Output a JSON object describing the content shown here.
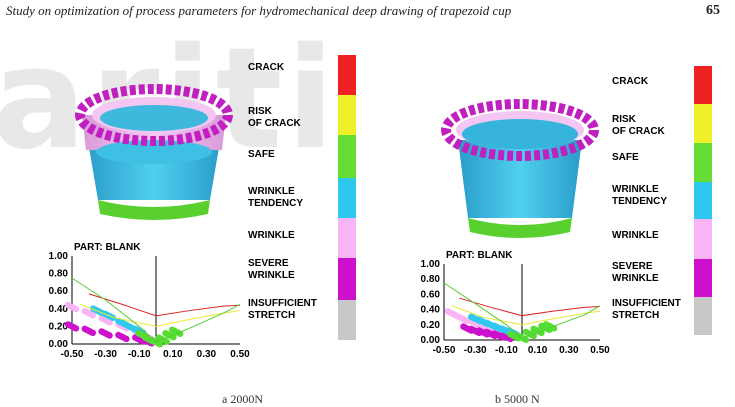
{
  "header": {
    "running_title": "Study on optimization of process parameters for hydromechanical deep drawing of trapezoid cup",
    "page_number": "65"
  },
  "legend": {
    "items": [
      {
        "label": "CRACK",
        "color": "#ee2222"
      },
      {
        "label": "RISK\nOF CRACK",
        "color": "#f0f02a"
      },
      {
        "label": "SAFE",
        "color": "#66dd33"
      },
      {
        "label": "WRINKLE\nTENDENCY",
        "color": "#2ec8ee"
      },
      {
        "label": "WRINKLE",
        "color": "#f8b4f4"
      },
      {
        "label": "SEVERE\nWRINKLE",
        "color": "#cc10cc"
      },
      {
        "label": "INSUFFICIENT\nSTRETCH",
        "color": "#c8c8c8"
      }
    ]
  },
  "panels": [
    {
      "part_label": "PART: BLANK",
      "caption": "a 2000N",
      "chart_data": {
        "type": "scatter",
        "x_ticks": [
          "-0.50",
          "-0.30",
          "-0.10",
          "0.10",
          "0.30",
          "0.50"
        ],
        "y_ticks": [
          "1.00",
          "0.80",
          "0.60",
          "0.40",
          "0.20",
          "0.00"
        ],
        "xlim": [
          -0.5,
          0.5
        ],
        "ylim": [
          0,
          1
        ],
        "curves": [
          {
            "color": "#dd2222",
            "x": [
              -0.4,
              -0.2,
              0.0,
              0.2,
              0.4,
              0.5
            ],
            "y": [
              0.57,
              0.45,
              0.32,
              0.38,
              0.43,
              0.44
            ]
          },
          {
            "color": "#e8e830",
            "x": [
              -0.45,
              -0.25,
              0.0,
              0.2,
              0.4,
              0.5
            ],
            "y": [
              0.45,
              0.3,
              0.2,
              0.28,
              0.35,
              0.38
            ]
          },
          {
            "color": "#55cc33",
            "x": [
              -0.5,
              -0.3,
              -0.1,
              0.0,
              0.2,
              0.4,
              0.5
            ],
            "y": [
              0.75,
              0.5,
              0.2,
              0.02,
              0.18,
              0.35,
              0.45
            ]
          }
        ],
        "scatter_bands": [
          {
            "color": "#f8b4f4",
            "x": [
              -0.5,
              -0.4,
              -0.3,
              -0.2,
              -0.1,
              -0.05
            ],
            "y": [
              0.42,
              0.35,
              0.27,
              0.2,
              0.12,
              0.08
            ]
          },
          {
            "color": "#cc10cc",
            "x": [
              -0.5,
              -0.4,
              -0.3,
              -0.2,
              -0.1,
              -0.05
            ],
            "y": [
              0.2,
              0.15,
              0.12,
              0.08,
              0.05,
              0.03
            ]
          },
          {
            "color": "#2ec8ee",
            "x": [
              -0.35,
              -0.28,
              -0.2,
              -0.15,
              -0.1
            ],
            "y": [
              0.38,
              0.32,
              0.24,
              0.19,
              0.15
            ]
          },
          {
            "color": "#55dd33",
            "x": [
              -0.08,
              -0.04,
              0.0,
              0.04,
              0.08,
              0.12
            ],
            "y": [
              0.1,
              0.05,
              0.02,
              0.05,
              0.1,
              0.14
            ]
          }
        ]
      }
    },
    {
      "part_label": "PART: BLANK",
      "caption": "b 5000 N",
      "chart_data": {
        "type": "scatter",
        "x_ticks": [
          "-0.50",
          "-0.30",
          "-0.10",
          "0.10",
          "0.30",
          "0.50"
        ],
        "y_ticks": [
          "1.00",
          "0.80",
          "0.60",
          "0.40",
          "0.20",
          "0.00"
        ],
        "xlim": [
          -0.5,
          0.5
        ],
        "ylim": [
          0,
          1
        ],
        "curves": [
          {
            "color": "#dd2222",
            "x": [
              -0.4,
              -0.2,
              0.0,
              0.2,
              0.4,
              0.5
            ],
            "y": [
              0.55,
              0.43,
              0.32,
              0.38,
              0.43,
              0.44
            ]
          },
          {
            "color": "#e8e830",
            "x": [
              -0.45,
              -0.25,
              0.0,
              0.2,
              0.4,
              0.5
            ],
            "y": [
              0.45,
              0.3,
              0.2,
              0.28,
              0.35,
              0.38
            ]
          },
          {
            "color": "#55cc33",
            "x": [
              -0.5,
              -0.3,
              -0.1,
              0.0,
              0.2,
              0.4,
              0.5
            ],
            "y": [
              0.75,
              0.48,
              0.2,
              0.02,
              0.18,
              0.33,
              0.45
            ]
          }
        ],
        "scatter_bands": [
          {
            "color": "#f8b4f4",
            "x": [
              -0.45,
              -0.38,
              -0.3,
              -0.22,
              -0.15,
              -0.08
            ],
            "y": [
              0.35,
              0.28,
              0.22,
              0.16,
              0.12,
              0.08
            ]
          },
          {
            "color": "#cc10cc",
            "x": [
              -0.35,
              -0.3,
              -0.25,
              -0.2,
              -0.15,
              -0.1
            ],
            "y": [
              0.15,
              0.12,
              0.1,
              0.08,
              0.06,
              0.04
            ]
          },
          {
            "color": "#2ec8ee",
            "x": [
              -0.3,
              -0.25,
              -0.2,
              -0.15,
              -0.1,
              -0.06
            ],
            "y": [
              0.28,
              0.24,
              0.2,
              0.16,
              0.12,
              0.1
            ]
          },
          {
            "color": "#55dd33",
            "x": [
              -0.05,
              0.0,
              0.05,
              0.1,
              0.15,
              0.18
            ],
            "y": [
              0.05,
              0.03,
              0.08,
              0.12,
              0.16,
              0.18
            ]
          }
        ]
      }
    }
  ]
}
